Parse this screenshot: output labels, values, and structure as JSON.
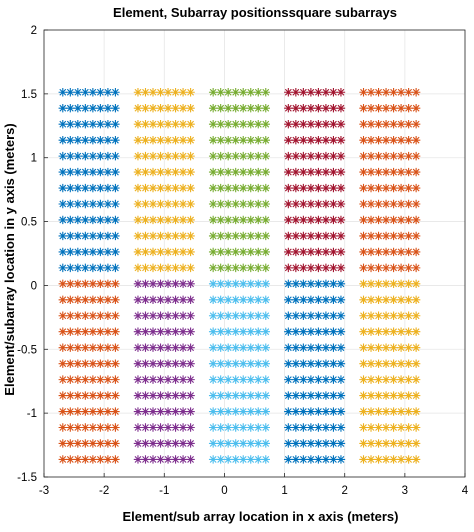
{
  "chart_data": {
    "type": "scatter",
    "title": "Element, Subarray positionssquare subarrays",
    "xlabel": "Element/sub array location in x axis (meters)",
    "ylabel": "Element/subarray location in y axis (meters)",
    "xlim": [
      -3,
      4
    ],
    "ylim": [
      -1.5,
      2
    ],
    "xticks": [
      "-3",
      "-2",
      "-1",
      "0",
      "1",
      "2",
      "3",
      "4"
    ],
    "yticks": [
      "-1.5",
      "-1",
      "-0.5",
      "0",
      "0.5",
      "1",
      "1.5",
      "2"
    ],
    "grid": true,
    "marker": "*",
    "element_spacing_m": 0.125,
    "elements_per_subarray_x": 8,
    "elements_per_subarray_y": 12,
    "series": [
      {
        "color": "#0072BD",
        "x_range": [
          -2.6875,
          -1.8125
        ],
        "y_range": [
          0.1375,
          1.5125
        ]
      },
      {
        "color": "#EDB120",
        "x_range": [
          -1.4375,
          -0.5625
        ],
        "y_range": [
          0.1375,
          1.5125
        ]
      },
      {
        "color": "#77AC30",
        "x_range": [
          -0.1875,
          0.6875
        ],
        "y_range": [
          0.1375,
          1.5125
        ]
      },
      {
        "color": "#A2142F",
        "x_range": [
          1.0625,
          1.9375
        ],
        "y_range": [
          0.1375,
          1.5125
        ]
      },
      {
        "color": "#D95319",
        "x_range": [
          2.3125,
          3.1875
        ],
        "y_range": [
          0.1375,
          1.5125
        ]
      },
      {
        "color": "#D95319",
        "x_range": [
          -2.6875,
          -1.8125
        ],
        "y_range": [
          -1.3625,
          0.0125
        ]
      },
      {
        "color": "#7E2F8E",
        "x_range": [
          -1.4375,
          -0.5625
        ],
        "y_range": [
          -1.3625,
          0.0125
        ]
      },
      {
        "color": "#4DBEEE",
        "x_range": [
          -0.1875,
          0.6875
        ],
        "y_range": [
          -1.3625,
          0.0125
        ]
      },
      {
        "color": "#0072BD",
        "x_range": [
          1.0625,
          1.9375
        ],
        "y_range": [
          -1.3625,
          0.0125
        ]
      },
      {
        "color": "#EDB120",
        "x_range": [
          2.3125,
          3.1875
        ],
        "y_range": [
          -1.3625,
          0.0125
        ]
      }
    ]
  }
}
